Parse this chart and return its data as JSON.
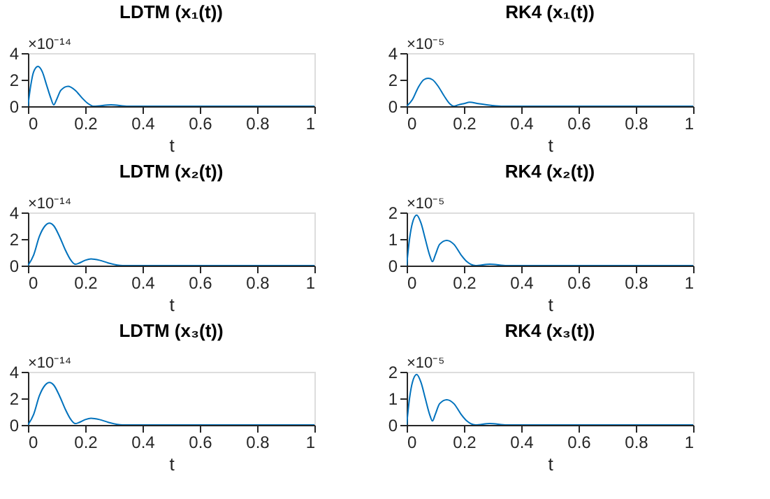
{
  "chart_data": [
    {
      "type": "line",
      "title": "LDTM (x₁(t))",
      "xlabel": "t",
      "annotations": [
        "×10⁻¹⁴"
      ],
      "xlim": [
        0,
        1
      ],
      "xticks": [
        0,
        0.2,
        0.4,
        0.6,
        0.8,
        1
      ],
      "ylim": [
        0,
        4
      ],
      "yticks": [
        0,
        2,
        4
      ],
      "grid": false,
      "series": [
        {
          "color": "#0072bd",
          "x": [
            0,
            0.01,
            0.02,
            0.035,
            0.05,
            0.065,
            0.08,
            0.09,
            0.1,
            0.115,
            0.14,
            0.165,
            0.19,
            0.21,
            0.23,
            0.29,
            0.35,
            0.4,
            0.5,
            0.6,
            0.7,
            0.8,
            0.9,
            1
          ],
          "values": [
            0,
            1.6,
            2.6,
            3.0,
            2.6,
            1.6,
            0.6,
            0.1,
            0.5,
            1.2,
            1.5,
            1.2,
            0.6,
            0.2,
            0,
            0.1,
            0,
            0,
            0,
            0,
            0,
            0,
            0,
            0
          ]
        }
      ]
    },
    {
      "type": "line",
      "title": "RK4 (x₁(t))",
      "xlabel": "t",
      "annotations": [
        "×10⁻⁵"
      ],
      "xlim": [
        0,
        1
      ],
      "xticks": [
        0,
        0.2,
        0.4,
        0.6,
        0.8,
        1
      ],
      "ylim": [
        0,
        4
      ],
      "yticks": [
        0,
        2,
        4
      ],
      "grid": false,
      "series": [
        {
          "color": "#0072bd",
          "x": [
            0,
            0.02,
            0.04,
            0.06,
            0.075,
            0.09,
            0.11,
            0.13,
            0.15,
            0.165,
            0.18,
            0.2,
            0.22,
            0.25,
            0.28,
            0.33,
            0.4,
            0.5,
            0.6,
            0.7,
            0.8,
            0.9,
            1
          ],
          "values": [
            0,
            0.5,
            1.4,
            2.0,
            2.1,
            2.0,
            1.5,
            0.8,
            0.2,
            0,
            0.1,
            0.2,
            0.3,
            0.2,
            0.1,
            0,
            0,
            0,
            0,
            0,
            0,
            0,
            0
          ]
        }
      ]
    },
    {
      "type": "line",
      "title": "LDTM (x₂(t))",
      "xlabel": "t",
      "annotations": [
        "×10⁻¹⁴"
      ],
      "xlim": [
        0,
        1
      ],
      "xticks": [
        0,
        0.2,
        0.4,
        0.6,
        0.8,
        1
      ],
      "ylim": [
        0,
        4
      ],
      "yticks": [
        0,
        2,
        4
      ],
      "grid": false,
      "series": [
        {
          "color": "#0072bd",
          "x": [
            0,
            0.02,
            0.04,
            0.06,
            0.075,
            0.09,
            0.11,
            0.13,
            0.15,
            0.165,
            0.18,
            0.2,
            0.22,
            0.25,
            0.28,
            0.33,
            0.4,
            0.5,
            0.6,
            0.7,
            0.8,
            0.9,
            1
          ],
          "values": [
            0,
            0.8,
            2.2,
            3.0,
            3.2,
            3.0,
            2.2,
            1.2,
            0.4,
            0.1,
            0.2,
            0.4,
            0.5,
            0.4,
            0.2,
            0,
            0,
            0,
            0,
            0,
            0,
            0,
            0
          ]
        }
      ]
    },
    {
      "type": "line",
      "title": "RK4  (x₂(t))",
      "xlabel": "t",
      "annotations": [
        "×10⁻⁵"
      ],
      "xlim": [
        0,
        1
      ],
      "xticks": [
        0,
        0.2,
        0.4,
        0.6,
        0.8,
        1
      ],
      "ylim": [
        0,
        2
      ],
      "yticks": [
        0,
        1,
        2
      ],
      "grid": false,
      "series": [
        {
          "color": "#0072bd",
          "x": [
            0,
            0.01,
            0.02,
            0.035,
            0.05,
            0.065,
            0.08,
            0.09,
            0.1,
            0.115,
            0.14,
            0.165,
            0.19,
            0.21,
            0.24,
            0.29,
            0.35,
            0.4,
            0.5,
            0.6,
            0.7,
            0.8,
            0.9,
            1
          ],
          "values": [
            0,
            1.0,
            1.6,
            1.9,
            1.6,
            1.0,
            0.4,
            0.15,
            0.4,
            0.8,
            0.95,
            0.8,
            0.4,
            0.15,
            0,
            0.05,
            0,
            0,
            0,
            0,
            0,
            0,
            0,
            0
          ]
        }
      ]
    },
    {
      "type": "line",
      "title": "LDTM  (x₃(t))",
      "xlabel": "t",
      "annotations": [
        "×10⁻¹⁴"
      ],
      "xlim": [
        0,
        1
      ],
      "xticks": [
        0,
        0.2,
        0.4,
        0.6,
        0.8,
        1
      ],
      "ylim": [
        0,
        4
      ],
      "yticks": [
        0,
        2,
        4
      ],
      "grid": false,
      "series": [
        {
          "color": "#0072bd",
          "x": [
            0,
            0.02,
            0.04,
            0.06,
            0.075,
            0.09,
            0.11,
            0.13,
            0.15,
            0.165,
            0.18,
            0.2,
            0.22,
            0.25,
            0.28,
            0.33,
            0.4,
            0.5,
            0.6,
            0.7,
            0.8,
            0.9,
            1
          ],
          "values": [
            0,
            0.8,
            2.2,
            3.0,
            3.2,
            3.0,
            2.2,
            1.2,
            0.4,
            0.1,
            0.2,
            0.4,
            0.5,
            0.4,
            0.2,
            0,
            0,
            0,
            0,
            0,
            0,
            0,
            0
          ]
        }
      ]
    },
    {
      "type": "line",
      "title": "RK4  (x₃(t))",
      "xlabel": "t",
      "annotations": [
        "×10⁻⁵"
      ],
      "xlim": [
        0,
        1
      ],
      "xticks": [
        0,
        0.2,
        0.4,
        0.6,
        0.8,
        1
      ],
      "ylim": [
        0,
        2
      ],
      "yticks": [
        0,
        1,
        2
      ],
      "grid": false,
      "series": [
        {
          "color": "#0072bd",
          "x": [
            0,
            0.01,
            0.02,
            0.035,
            0.05,
            0.065,
            0.08,
            0.09,
            0.1,
            0.115,
            0.14,
            0.165,
            0.19,
            0.21,
            0.24,
            0.29,
            0.35,
            0.4,
            0.5,
            0.6,
            0.7,
            0.8,
            0.9,
            1
          ],
          "values": [
            0,
            1.0,
            1.6,
            1.9,
            1.6,
            1.0,
            0.4,
            0.15,
            0.4,
            0.8,
            0.95,
            0.8,
            0.4,
            0.15,
            0,
            0.05,
            0,
            0,
            0,
            0,
            0,
            0,
            0,
            0
          ]
        }
      ]
    }
  ]
}
